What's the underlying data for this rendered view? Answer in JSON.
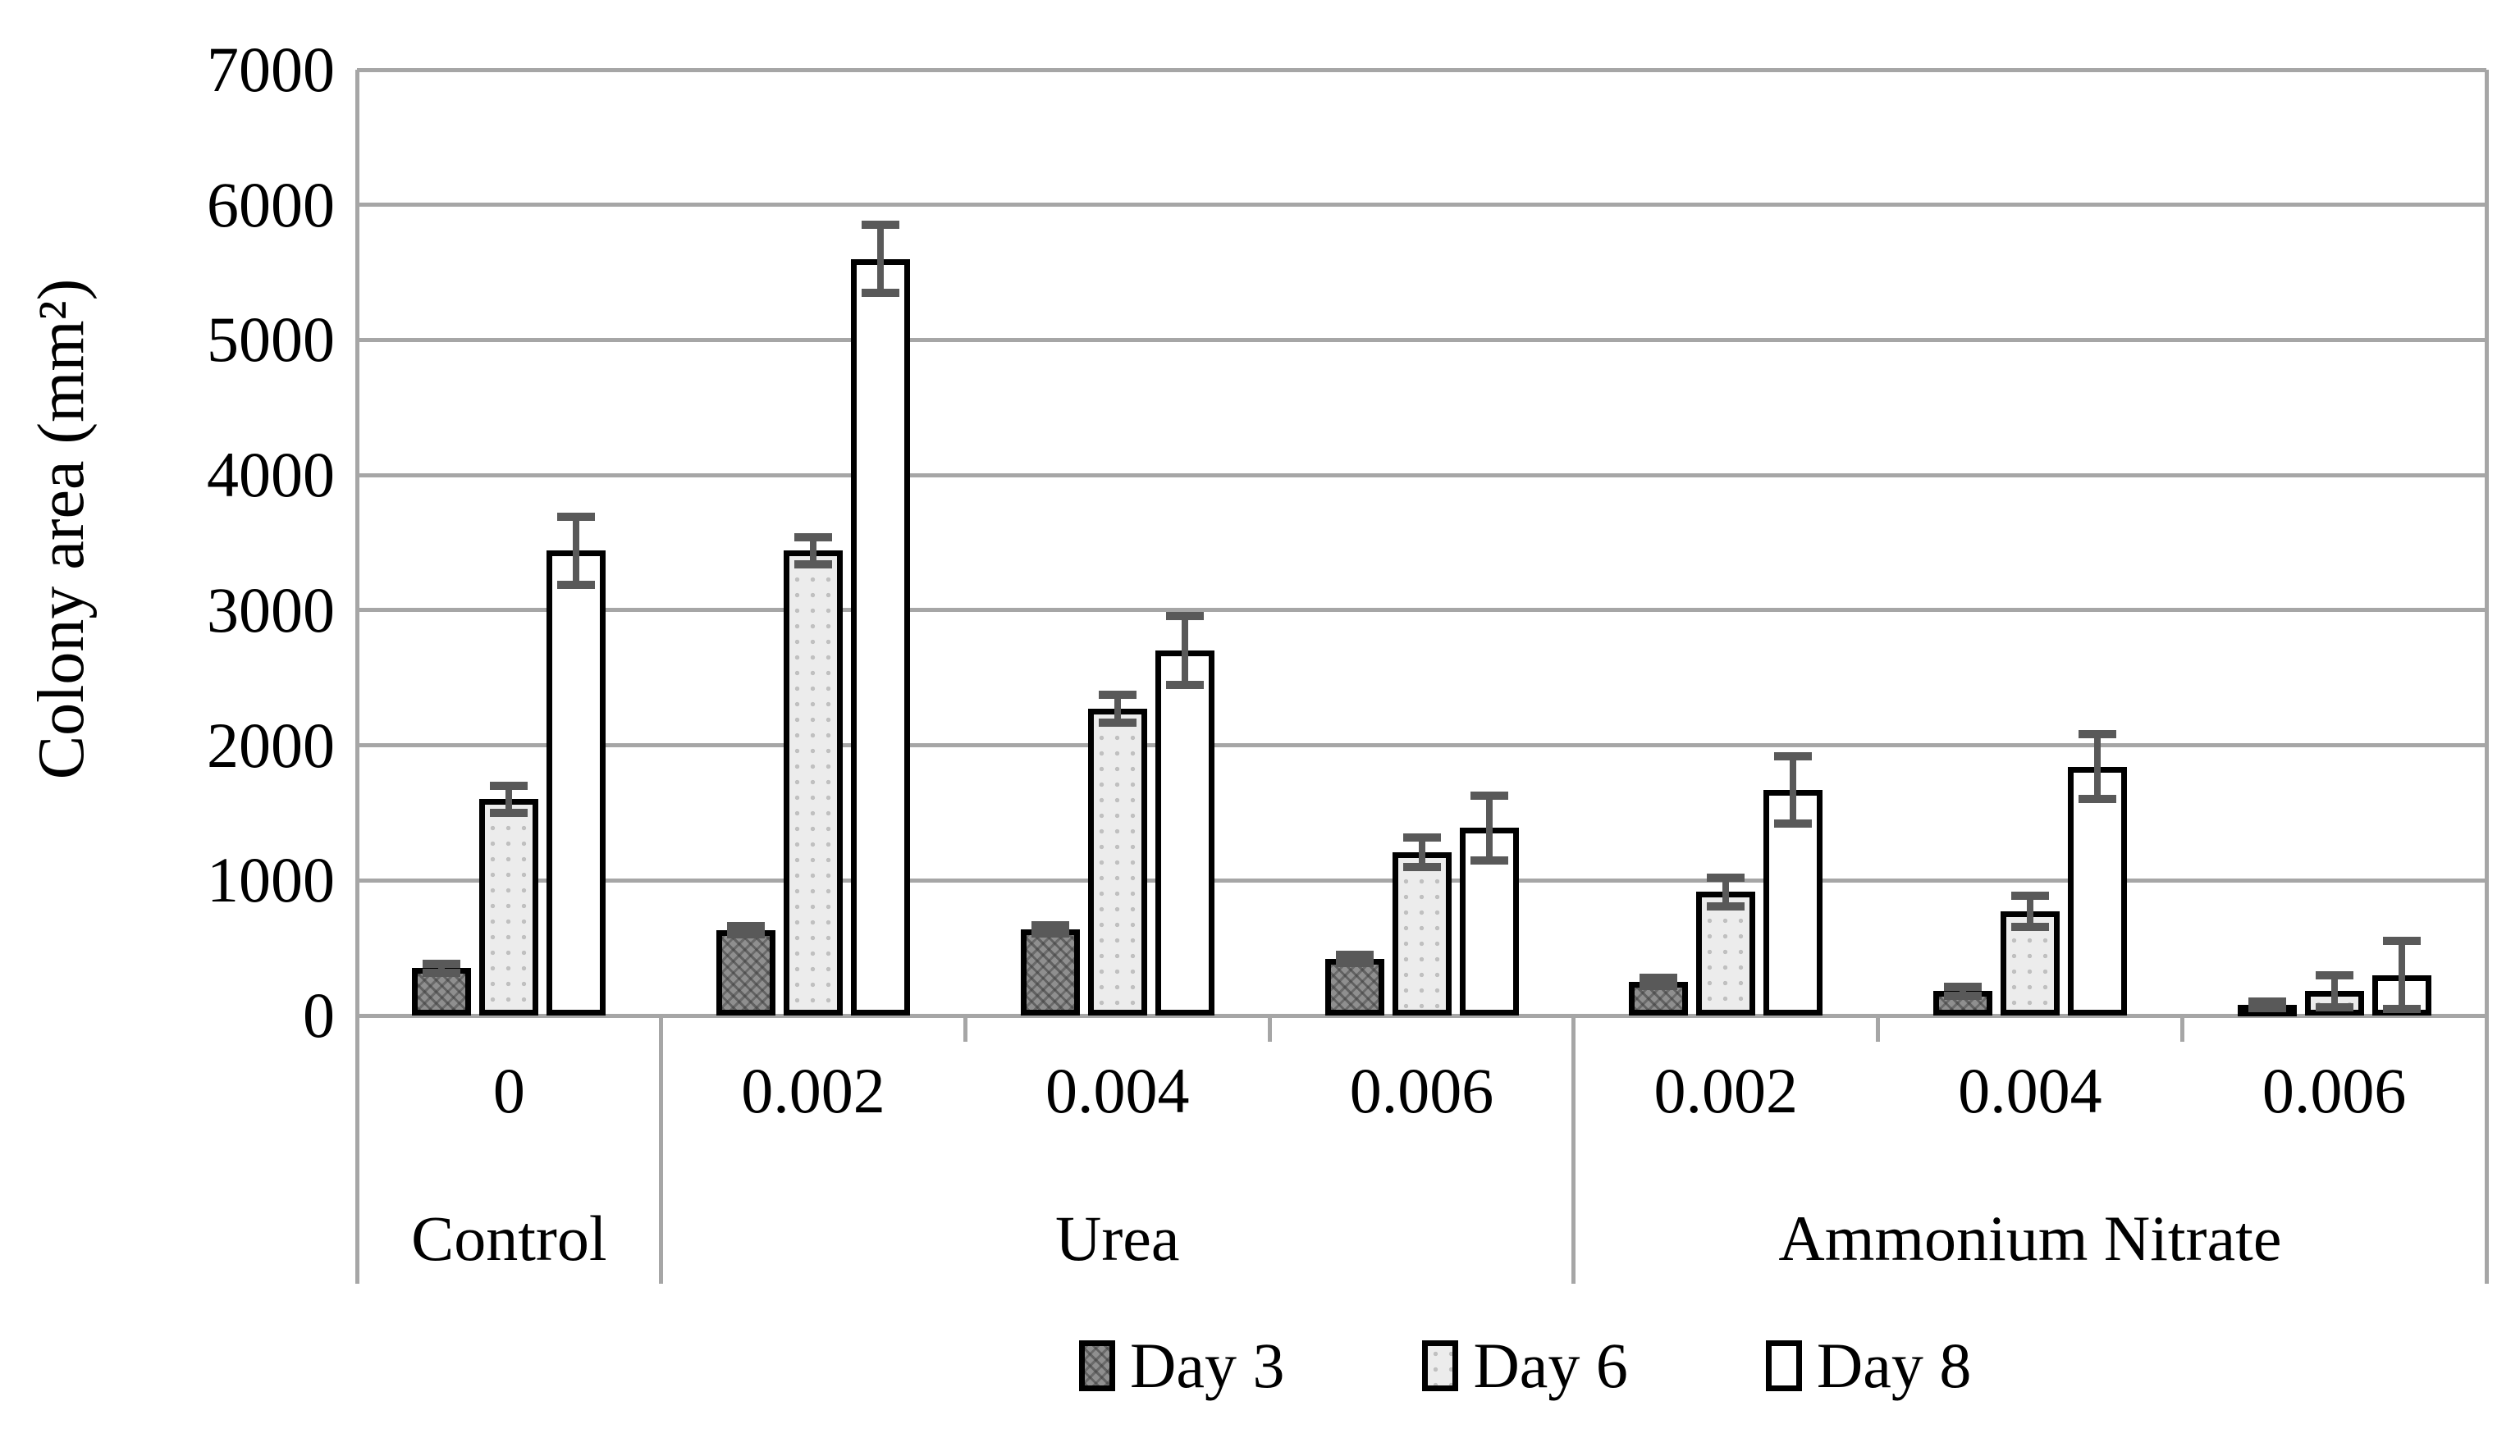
{
  "chart_data": {
    "type": "bar",
    "title": "",
    "xlabel": "",
    "ylabel": "Colony area (mm²)",
    "ylim": [
      0,
      7000
    ],
    "ytick_step": 1000,
    "yticks": [
      "0",
      "1000",
      "2000",
      "3000",
      "4000",
      "5000",
      "6000",
      "7000"
    ],
    "grid": "horizontal",
    "legend_position": "bottom",
    "series_names": [
      "Day 3",
      "Day 6",
      "Day 8"
    ],
    "sections": [
      {
        "label": "Control",
        "span": 1
      },
      {
        "label": "Urea",
        "span": 3
      },
      {
        "label": "Ammonium Nitrate",
        "span": 3
      }
    ],
    "groups": [
      {
        "section": "Control",
        "concentration": "0",
        "values": [
          350,
          1600,
          3440
        ],
        "errors": [
          35,
          100,
          250
        ]
      },
      {
        "section": "Urea",
        "concentration": "0.002",
        "values": [
          630,
          3440,
          5600
        ],
        "errors": [
          30,
          100,
          250
        ]
      },
      {
        "section": "Urea",
        "concentration": "0.004",
        "values": [
          640,
          2270,
          2700
        ],
        "errors": [
          30,
          105,
          255
        ]
      },
      {
        "section": "Urea",
        "concentration": "0.006",
        "values": [
          420,
          1210,
          1390
        ],
        "errors": [
          30,
          110,
          240
        ]
      },
      {
        "section": "Ammonium Nitrate",
        "concentration": "0.002",
        "values": [
          250,
          915,
          1670
        ],
        "errors": [
          30,
          105,
          250
        ]
      },
      {
        "section": "Ammonium Nitrate",
        "concentration": "0.004",
        "values": [
          180,
          770,
          1840
        ],
        "errors": [
          35,
          115,
          240
        ]
      },
      {
        "section": "Ammonium Nitrate",
        "concentration": "0.006",
        "values": [
          80,
          180,
          300
        ],
        "errors": [
          25,
          120,
          250
        ]
      }
    ],
    "colors": {
      "bar_border": "#000000",
      "day3_fill": "#8f8f8f",
      "day6_fill": "#ececec",
      "day8_fill": "#ffffff",
      "error_bar": "#595959",
      "gridline": "#a6a6a6",
      "text": "#000000"
    }
  }
}
